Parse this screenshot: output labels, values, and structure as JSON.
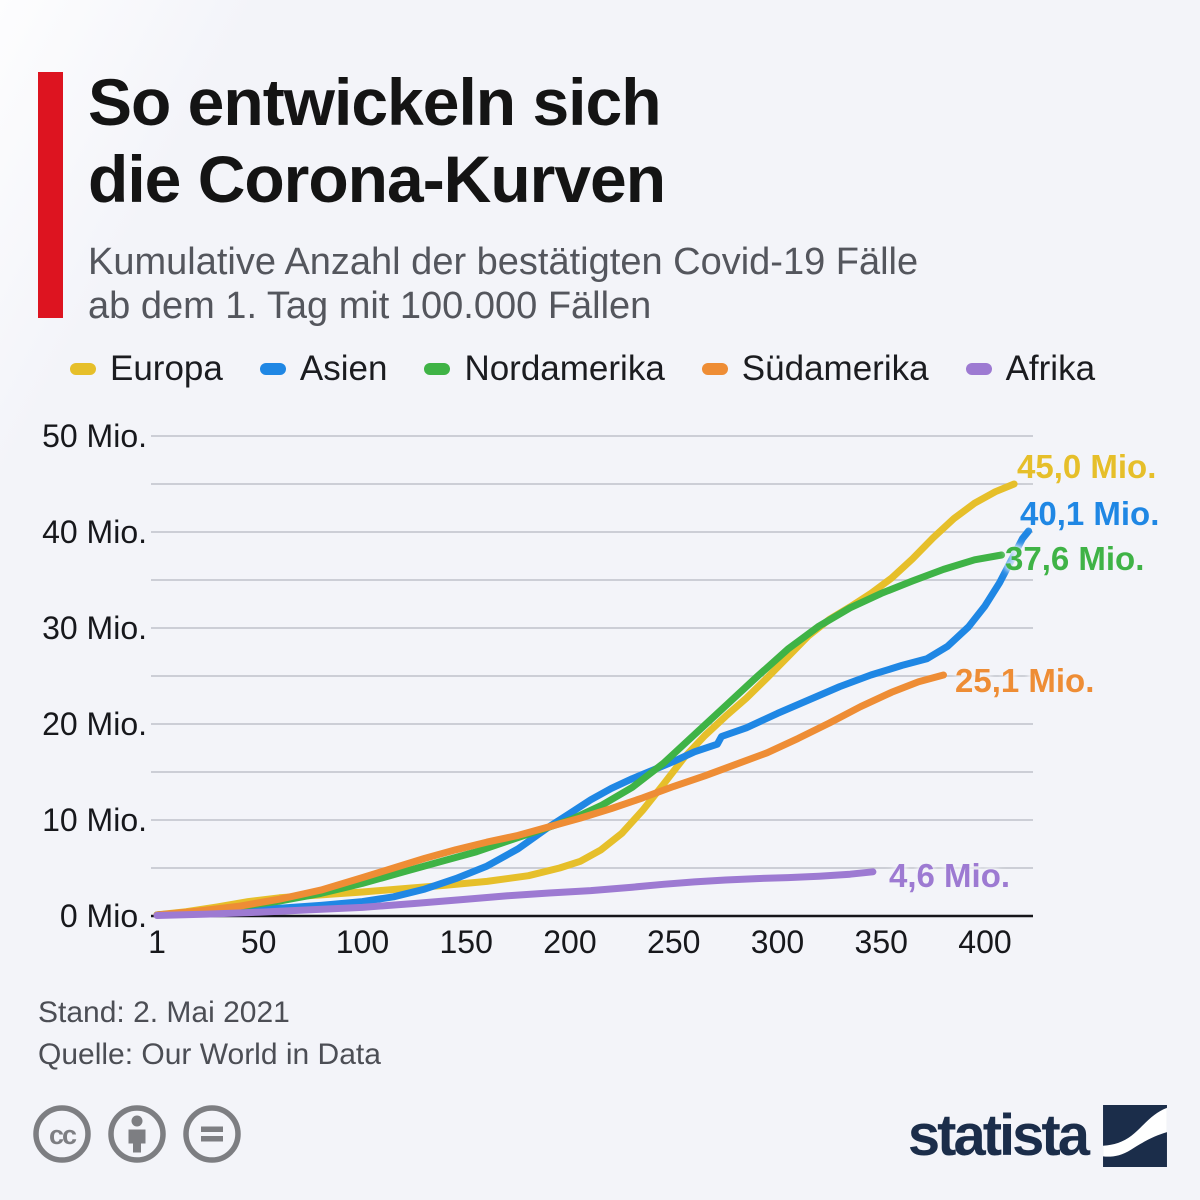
{
  "page": {
    "background": "#f3f4f9",
    "accent_bar_color": "#dd1420"
  },
  "header": {
    "title_line1": "So entwickeln sich",
    "title_line2": "die Corona-Kurven",
    "subtitle_line1": "Kumulative Anzahl der bestätigten Covid-19 Fälle",
    "subtitle_line2": "ab dem 1. Tag mit 100.000 Fällen"
  },
  "chart_data": {
    "type": "line",
    "title": "Kumulative Anzahl der bestätigten Covid-19 Fälle ab dem 1. Tag mit 100.000 Fällen",
    "unit": "Mio.",
    "grid": true,
    "legend_position": "top",
    "x_axis": {
      "min": 1,
      "max": 423,
      "ticks": [
        1,
        50,
        100,
        150,
        200,
        250,
        300,
        350,
        400
      ]
    },
    "y_axis": {
      "min": 0,
      "max": 50,
      "gridline_step": 5,
      "ticks": [
        {
          "value": 0,
          "label": "0 Mio."
        },
        {
          "value": 10,
          "label": "10 Mio."
        },
        {
          "value": 20,
          "label": "20 Mio."
        },
        {
          "value": 30,
          "label": "30 Mio."
        },
        {
          "value": 40,
          "label": "40 Mio."
        },
        {
          "value": 50,
          "label": "50 Mio."
        }
      ]
    },
    "series": [
      {
        "name": "Europa",
        "color": "#e6bf2a",
        "end_value": 45.0,
        "end_label": "45,0 Mio.",
        "points": [
          [
            1,
            0.12
          ],
          [
            15,
            0.45
          ],
          [
            30,
            0.95
          ],
          [
            45,
            1.5
          ],
          [
            60,
            1.9
          ],
          [
            80,
            2.2
          ],
          [
            100,
            2.5
          ],
          [
            120,
            2.85
          ],
          [
            140,
            3.2
          ],
          [
            160,
            3.6
          ],
          [
            180,
            4.2
          ],
          [
            195,
            5.0
          ],
          [
            205,
            5.7
          ],
          [
            215,
            6.9
          ],
          [
            225,
            8.6
          ],
          [
            235,
            11.0
          ],
          [
            245,
            13.7
          ],
          [
            255,
            16.5
          ],
          [
            265,
            18.8
          ],
          [
            275,
            20.8
          ],
          [
            285,
            22.7
          ],
          [
            295,
            24.8
          ],
          [
            305,
            27.0
          ],
          [
            315,
            29.2
          ],
          [
            325,
            30.9
          ],
          [
            335,
            32.2
          ],
          [
            345,
            33.6
          ],
          [
            355,
            35.2
          ],
          [
            365,
            37.2
          ],
          [
            375,
            39.4
          ],
          [
            385,
            41.4
          ],
          [
            395,
            43.0
          ],
          [
            405,
            44.2
          ],
          [
            414,
            45.0
          ]
        ]
      },
      {
        "name": "Asien",
        "color": "#1f87e4",
        "end_value": 40.1,
        "end_label": "40,1 Mio.",
        "points": [
          [
            1,
            0.1
          ],
          [
            20,
            0.3
          ],
          [
            40,
            0.55
          ],
          [
            60,
            0.8
          ],
          [
            80,
            1.1
          ],
          [
            100,
            1.5
          ],
          [
            115,
            2.0
          ],
          [
            130,
            2.8
          ],
          [
            145,
            3.9
          ],
          [
            160,
            5.2
          ],
          [
            175,
            7.0
          ],
          [
            190,
            9.3
          ],
          [
            200,
            10.7
          ],
          [
            210,
            12.1
          ],
          [
            220,
            13.3
          ],
          [
            230,
            14.3
          ],
          [
            240,
            15.2
          ],
          [
            250,
            16.1
          ],
          [
            260,
            17.1
          ],
          [
            271,
            17.9
          ],
          [
            273,
            18.7
          ],
          [
            285,
            19.6
          ],
          [
            300,
            21.1
          ],
          [
            315,
            22.5
          ],
          [
            330,
            23.9
          ],
          [
            345,
            25.1
          ],
          [
            360,
            26.1
          ],
          [
            372,
            26.8
          ],
          [
            382,
            28.1
          ],
          [
            392,
            30.1
          ],
          [
            400,
            32.3
          ],
          [
            407,
            34.7
          ],
          [
            413,
            37.2
          ],
          [
            418,
            39.3
          ],
          [
            421,
            40.1
          ]
        ]
      },
      {
        "name": "Nordamerika",
        "color": "#3fb346",
        "end_value": 37.6,
        "end_label": "37,6 Mio.",
        "points": [
          [
            1,
            0.1
          ],
          [
            20,
            0.45
          ],
          [
            40,
            0.95
          ],
          [
            60,
            1.55
          ],
          [
            80,
            2.35
          ],
          [
            100,
            3.4
          ],
          [
            120,
            4.6
          ],
          [
            140,
            5.8
          ],
          [
            155,
            6.7
          ],
          [
            170,
            7.8
          ],
          [
            185,
            8.9
          ],
          [
            200,
            10.0
          ],
          [
            215,
            11.5
          ],
          [
            230,
            13.4
          ],
          [
            245,
            15.9
          ],
          [
            260,
            18.9
          ],
          [
            275,
            21.9
          ],
          [
            290,
            24.9
          ],
          [
            305,
            27.8
          ],
          [
            320,
            30.2
          ],
          [
            335,
            32.1
          ],
          [
            350,
            33.6
          ],
          [
            365,
            34.9
          ],
          [
            380,
            36.1
          ],
          [
            395,
            37.1
          ],
          [
            408,
            37.6
          ]
        ]
      },
      {
        "name": "Südamerika",
        "color": "#ee8d35",
        "end_value": 25.1,
        "end_label": "25,1 Mio.",
        "points": [
          [
            1,
            0.1
          ],
          [
            20,
            0.5
          ],
          [
            40,
            1.0
          ],
          [
            60,
            1.75
          ],
          [
            80,
            2.7
          ],
          [
            100,
            4.0
          ],
          [
            115,
            5.0
          ],
          [
            130,
            6.0
          ],
          [
            145,
            6.9
          ],
          [
            160,
            7.7
          ],
          [
            175,
            8.4
          ],
          [
            190,
            9.3
          ],
          [
            205,
            10.2
          ],
          [
            220,
            11.2
          ],
          [
            235,
            12.3
          ],
          [
            250,
            13.5
          ],
          [
            265,
            14.6
          ],
          [
            280,
            15.8
          ],
          [
            295,
            17.0
          ],
          [
            310,
            18.5
          ],
          [
            325,
            20.1
          ],
          [
            340,
            21.8
          ],
          [
            355,
            23.3
          ],
          [
            368,
            24.4
          ],
          [
            380,
            25.1
          ]
        ]
      },
      {
        "name": "Afrika",
        "color": "#9d7ad2",
        "end_value": 4.6,
        "end_label": "4,6 Mio.",
        "points": [
          [
            1,
            0.05
          ],
          [
            25,
            0.2
          ],
          [
            50,
            0.4
          ],
          [
            75,
            0.65
          ],
          [
            100,
            0.9
          ],
          [
            125,
            1.3
          ],
          [
            150,
            1.75
          ],
          [
            170,
            2.1
          ],
          [
            190,
            2.4
          ],
          [
            210,
            2.65
          ],
          [
            230,
            3.0
          ],
          [
            245,
            3.3
          ],
          [
            260,
            3.55
          ],
          [
            275,
            3.75
          ],
          [
            290,
            3.9
          ],
          [
            305,
            4.0
          ],
          [
            320,
            4.15
          ],
          [
            335,
            4.35
          ],
          [
            346,
            4.6
          ]
        ]
      }
    ]
  },
  "footer": {
    "stand": "Stand: 2. Mai 2021",
    "quelle": "Quelle: Our World in Data"
  },
  "branding": {
    "logo_text": "statista",
    "logo_color": "#1b2d4a",
    "license_icons": [
      "cc",
      "by",
      "nd"
    ]
  }
}
